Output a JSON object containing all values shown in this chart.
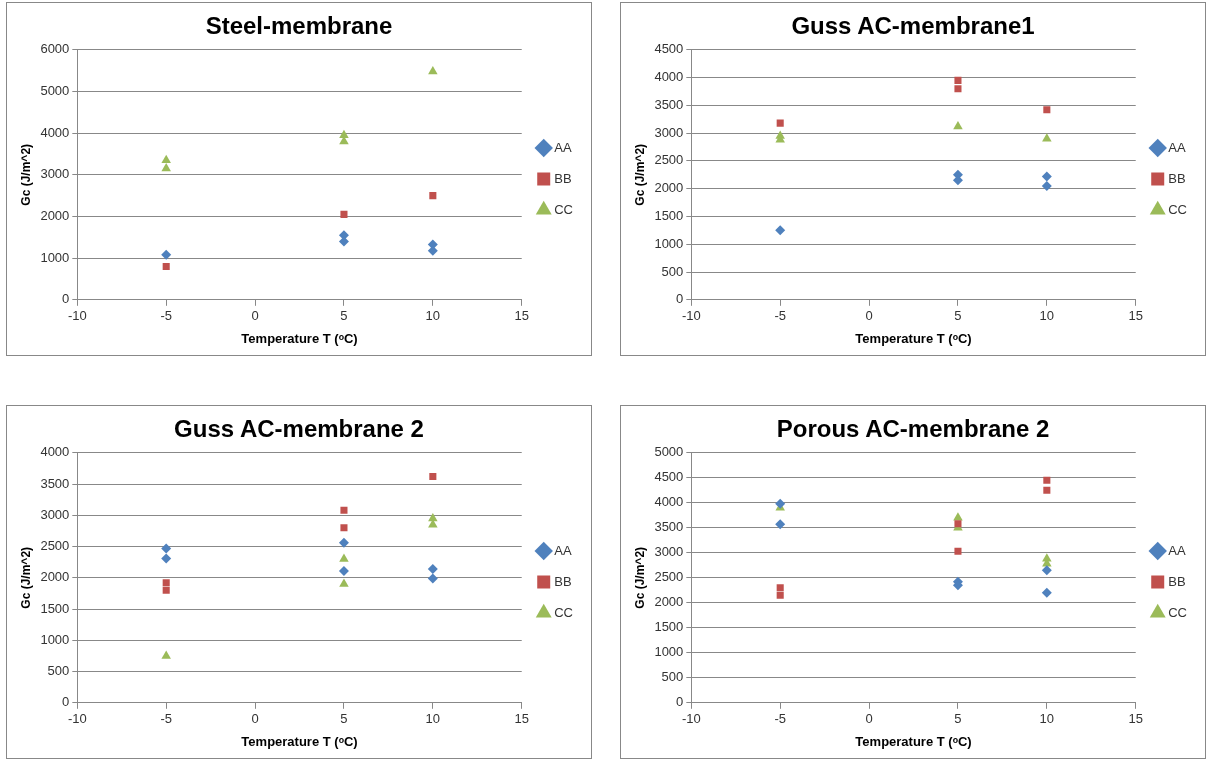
{
  "chart_data": [
    {
      "type": "scatter",
      "title": "Steel-membrane",
      "xlabel": "Temperature T (ᵒC)",
      "ylabel": "Gc (J/m^2)",
      "xlim": [
        -10,
        15
      ],
      "xticks": [
        -10,
        -5,
        0,
        5,
        10,
        15
      ],
      "ylim": [
        0,
        6000
      ],
      "yticks": [
        0,
        1000,
        2000,
        3000,
        4000,
        5000,
        6000
      ],
      "grid": "y",
      "legend": "right",
      "series": [
        {
          "name": "AA",
          "color": "#4f81bd",
          "marker": "diamond",
          "x": [
            -5,
            5,
            5,
            10,
            10
          ],
          "values": [
            1080,
            1550,
            1400,
            1330,
            1180
          ]
        },
        {
          "name": "BB",
          "color": "#c0504d",
          "marker": "square",
          "x": [
            -5,
            5,
            10
          ],
          "values": [
            800,
            2050,
            2500
          ]
        },
        {
          "name": "CC",
          "color": "#9bbb59",
          "marker": "triangle",
          "x": [
            -5,
            -5,
            5,
            5,
            10
          ],
          "values": [
            3350,
            3150,
            3950,
            3800,
            5480
          ]
        }
      ]
    },
    {
      "type": "scatter",
      "title": "Guss AC-membrane1",
      "xlabel": "Temperature T (ᵒC)",
      "ylabel": "Gc (J/m^2)",
      "xlim": [
        -10,
        15
      ],
      "xticks": [
        -10,
        -5,
        0,
        5,
        10,
        15
      ],
      "ylim": [
        0,
        4500
      ],
      "yticks": [
        0,
        500,
        1000,
        1500,
        2000,
        2500,
        3000,
        3500,
        4000,
        4500
      ],
      "grid": "y",
      "legend": "right",
      "series": [
        {
          "name": "AA",
          "color": "#4f81bd",
          "marker": "diamond",
          "x": [
            -5,
            5,
            5,
            10,
            10
          ],
          "values": [
            1250,
            2250,
            2150,
            2220,
            2050
          ]
        },
        {
          "name": "BB",
          "color": "#c0504d",
          "marker": "square",
          "x": [
            -5,
            5,
            5,
            10
          ],
          "values": [
            3180,
            3950,
            3800,
            3420
          ]
        },
        {
          "name": "CC",
          "color": "#9bbb59",
          "marker": "triangle",
          "x": [
            -5,
            -5,
            5,
            10
          ],
          "values": [
            2950,
            2880,
            3120,
            2900
          ]
        }
      ]
    },
    {
      "type": "scatter",
      "title": "Guss AC-membrane 2",
      "xlabel": "Temperature T (ᵒC)",
      "ylabel": "Gc (J/m^2)",
      "xlim": [
        -10,
        15
      ],
      "xticks": [
        -10,
        -5,
        0,
        5,
        10,
        15
      ],
      "ylim": [
        0,
        4000
      ],
      "yticks": [
        0,
        500,
        1000,
        1500,
        2000,
        2500,
        3000,
        3500,
        4000
      ],
      "grid": "y",
      "legend": "right",
      "series": [
        {
          "name": "AA",
          "color": "#4f81bd",
          "marker": "diamond",
          "x": [
            -5,
            -5,
            5,
            5,
            10,
            10
          ],
          "values": [
            2470,
            2310,
            2560,
            2110,
            2140,
            1990
          ]
        },
        {
          "name": "BB",
          "color": "#c0504d",
          "marker": "square",
          "x": [
            -5,
            -5,
            5,
            5,
            10
          ],
          "values": [
            1920,
            1800,
            3080,
            2800,
            3620
          ]
        },
        {
          "name": "CC",
          "color": "#9bbb59",
          "marker": "triangle",
          "x": [
            -5,
            5,
            5,
            10,
            10
          ],
          "values": [
            750,
            2300,
            1900,
            2950,
            2850
          ]
        }
      ]
    },
    {
      "type": "scatter",
      "title": "Porous AC-membrane 2",
      "xlabel": "Temperature T (ᵒC)",
      "ylabel": "Gc (J/m^2)",
      "xlim": [
        -10,
        15
      ],
      "xticks": [
        -10,
        -5,
        0,
        5,
        10,
        15
      ],
      "ylim": [
        0,
        5000
      ],
      "yticks": [
        0,
        500,
        1000,
        1500,
        2000,
        2500,
        3000,
        3500,
        4000,
        4500,
        5000
      ],
      "grid": "y",
      "legend": "right",
      "series": [
        {
          "name": "AA",
          "color": "#4f81bd",
          "marker": "diamond",
          "x": [
            -5,
            -5,
            5,
            5,
            10,
            10
          ],
          "values": [
            3980,
            3570,
            2420,
            2350,
            2650,
            2200
          ]
        },
        {
          "name": "BB",
          "color": "#c0504d",
          "marker": "square",
          "x": [
            -5,
            -5,
            5,
            5,
            10,
            10
          ],
          "values": [
            2300,
            2150,
            3580,
            3030,
            4450,
            4250
          ]
        },
        {
          "name": "CC",
          "color": "#9bbb59",
          "marker": "triangle",
          "x": [
            -5,
            5,
            5,
            10,
            10
          ],
          "values": [
            3900,
            3700,
            3500,
            2880,
            2780
          ]
        }
      ]
    }
  ]
}
